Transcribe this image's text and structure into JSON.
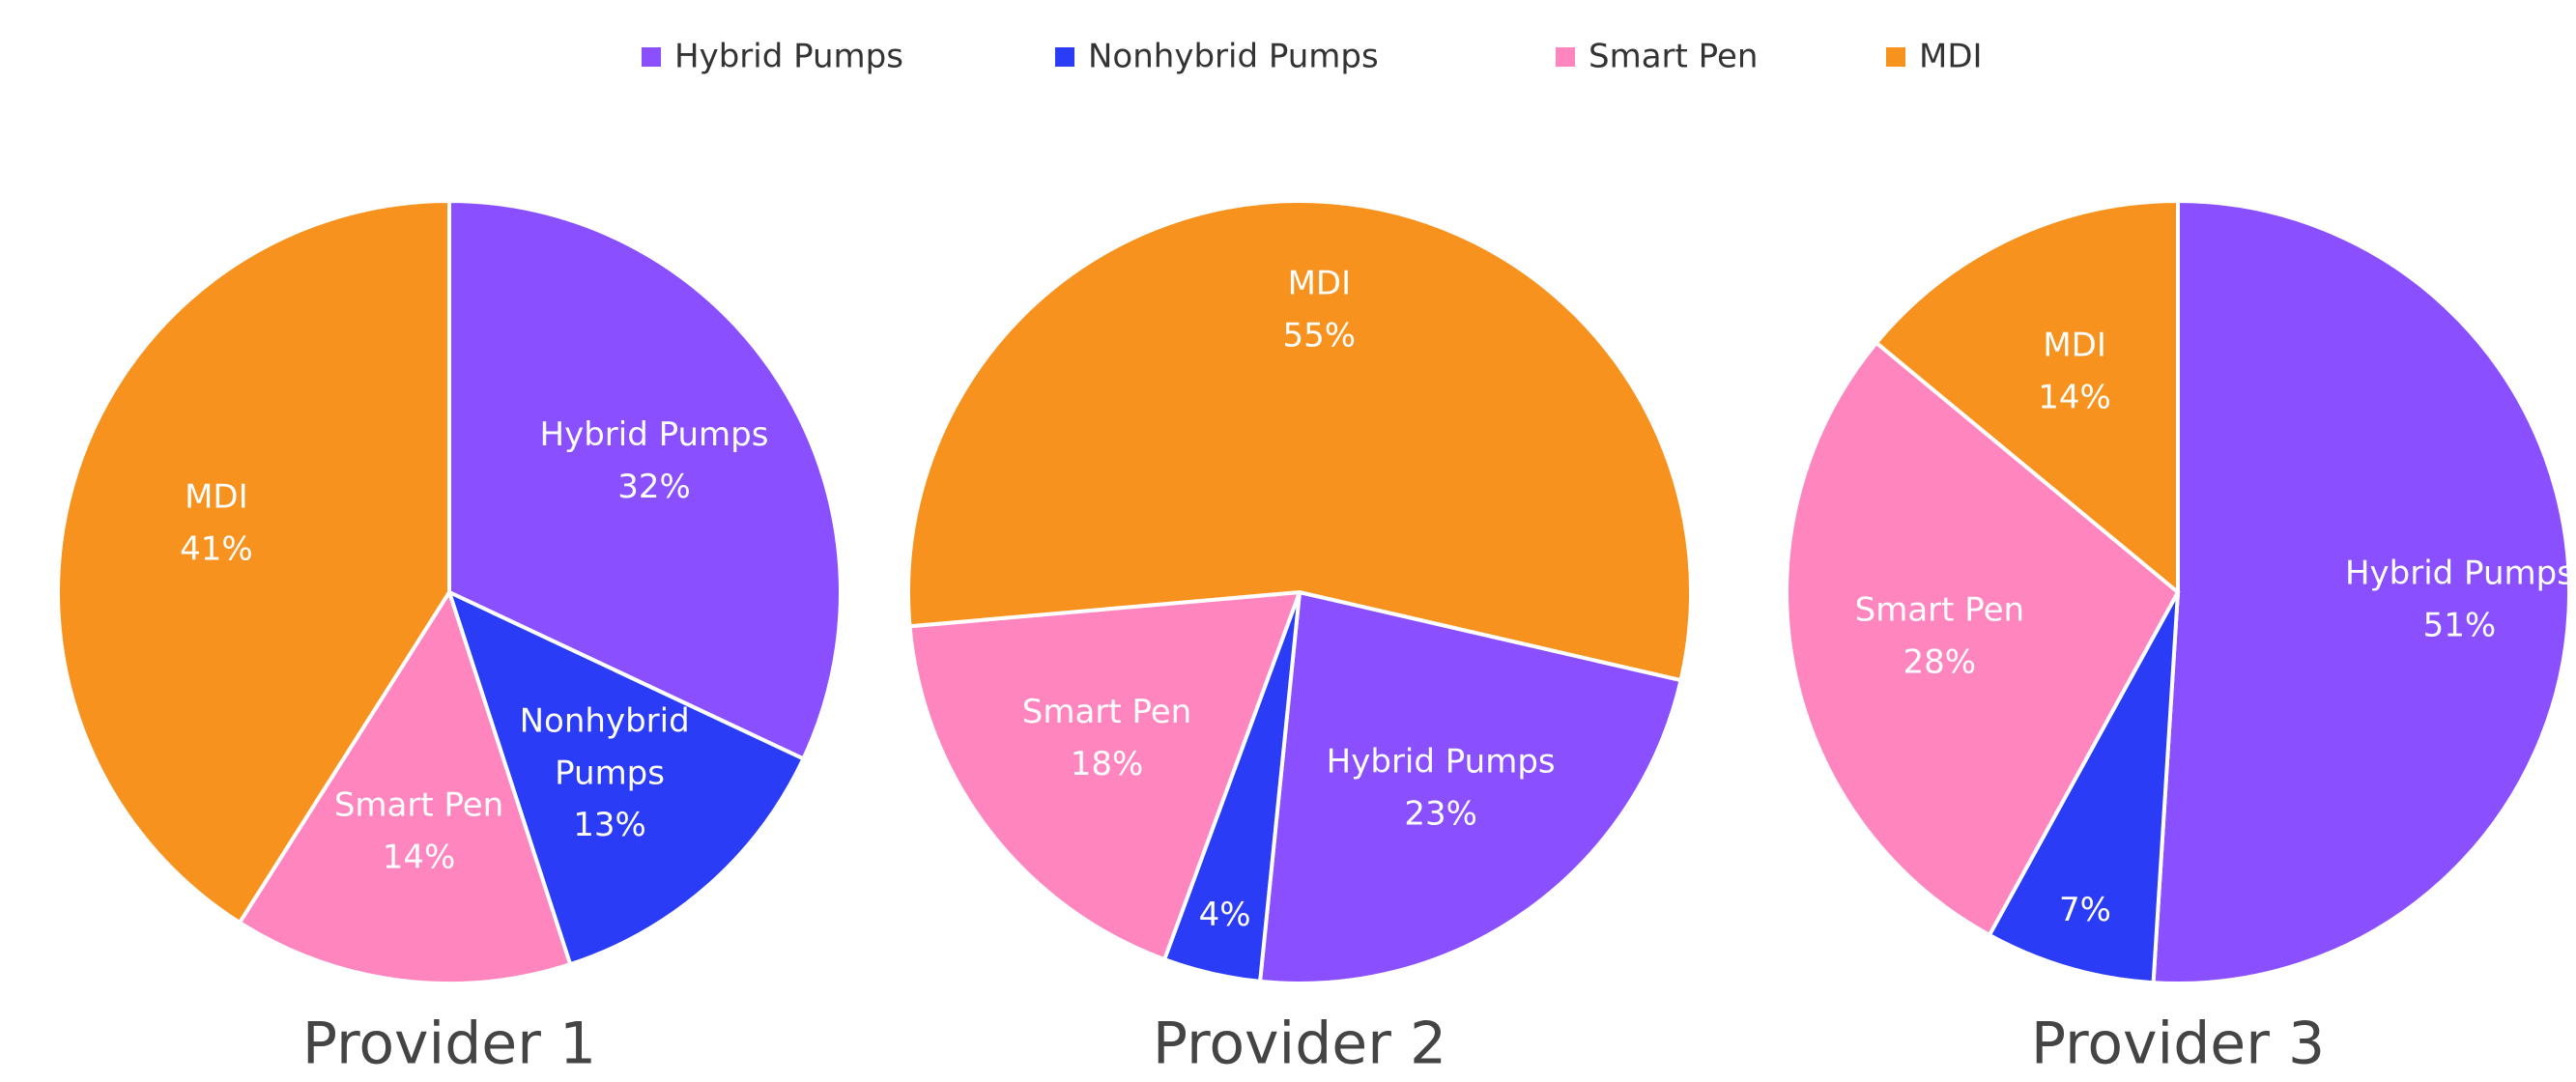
{
  "chart_data": [
    {
      "type": "pie",
      "title": "Provider 1",
      "categories": [
        "Hybrid Pumps",
        "Nonhybrid Pumps",
        "Smart Pen",
        "MDI"
      ],
      "values": [
        32,
        13,
        14,
        41
      ],
      "value_labels": [
        "32%",
        "13%",
        "14%",
        "41%"
      ],
      "colors": [
        "#8a4fff",
        "#2a3cf5",
        "#ff85bf",
        "#f7921e"
      ],
      "legend": "top"
    },
    {
      "type": "pie",
      "title": "Provider 2",
      "categories": [
        "Hybrid Pumps",
        "Nonhybrid Pumps",
        "Smart Pen",
        "MDI"
      ],
      "values": [
        23,
        4,
        18,
        55
      ],
      "value_labels": [
        "23%",
        "4%",
        "18%",
        "55%"
      ],
      "colors": [
        "#8a4fff",
        "#2a3cf5",
        "#ff85bf",
        "#f7921e"
      ]
    },
    {
      "type": "pie",
      "title": "Provider 3",
      "categories": [
        "Hybrid Pumps",
        "Nonhybrid Pumps",
        "Smart Pen",
        "MDI"
      ],
      "values": [
        51,
        7,
        28,
        14
      ],
      "value_labels": [
        "51%",
        "7%",
        "28%",
        "14%"
      ],
      "colors": [
        "#8a4fff",
        "#2a3cf5",
        "#ff85bf",
        "#f7921e"
      ]
    }
  ]
}
